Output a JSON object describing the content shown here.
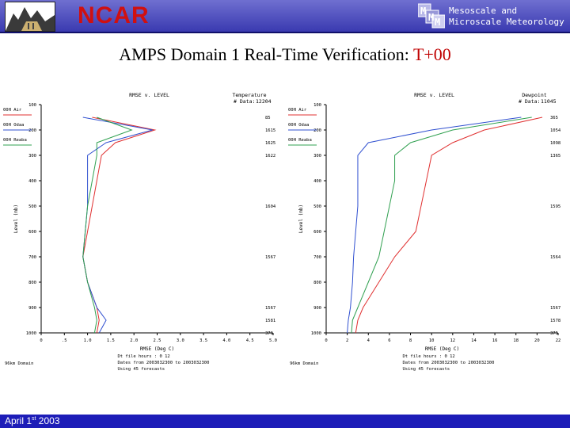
{
  "header": {
    "org": "NCAR",
    "division_line1": "Mesoscale and",
    "division_line2": "Microscale Meteorology",
    "logo_icon": "mountain-logo-icon",
    "mmm_icon": "mmm-logo-icon",
    "banner_color": "#4a4ac0",
    "org_color": "#d01010"
  },
  "slide": {
    "title_main": "AMPS Domain 1 Real-Time Verification:",
    "title_hour": "T+00"
  },
  "footer": {
    "date_prefix": "April 1",
    "date_sup": "st",
    "date_suffix": " 2003"
  },
  "colors": {
    "00H Air": "#e03030",
    "00H Odaa": "#3050d0",
    "00H Reaba": "#30a050"
  },
  "chart_data": [
    {
      "type": "line",
      "title": "RMSE v. LEVEL",
      "variable": "Temperature",
      "data_count_label": "# Data:",
      "data_count": "12204",
      "xlabel": "RMSE (Deg C)",
      "ylabel": "Level (mb)",
      "xlim": [
        0,
        5
      ],
      "ylim": [
        1000,
        100
      ],
      "x_ticks": [
        "0",
        ".5",
        "1.0",
        "1.5",
        "2.0",
        "2.5",
        "3.0",
        "3.5",
        "4.0",
        "4.5",
        "5.0"
      ],
      "y_ticks": [
        "100",
        "200",
        "300",
        "400",
        "500",
        "600",
        "700",
        "800",
        "900",
        "1000"
      ],
      "levels": [
        150,
        200,
        250,
        300,
        400,
        500,
        600,
        700,
        800,
        900,
        950,
        1000
      ],
      "counts": [
        "85",
        "1615",
        "1625",
        "1622",
        "",
        "1604",
        "",
        "1567",
        "",
        "1567",
        "1581",
        "376"
      ],
      "series": [
        {
          "name": "00H Air",
          "values": [
            1.1,
            2.45,
            1.6,
            1.3,
            1.2,
            1.1,
            1.0,
            0.9,
            1.0,
            1.2,
            1.25,
            1.2
          ]
        },
        {
          "name": "00H Odaa",
          "values": [
            0.9,
            2.4,
            1.4,
            1.0,
            1.0,
            1.0,
            0.95,
            0.9,
            1.0,
            1.2,
            1.4,
            1.25
          ]
        },
        {
          "name": "00H Reaba",
          "values": [
            1.2,
            1.95,
            1.2,
            1.2,
            1.1,
            1.0,
            0.95,
            0.9,
            1.0,
            1.15,
            1.2,
            1.15
          ]
        }
      ],
      "footer_lines": [
        "Dt file hours : 0 12",
        "Dates from 2003032300 to 2003032300",
        "Using   45 forecasts"
      ],
      "footer_left": "96km Domain"
    },
    {
      "type": "line",
      "title": "RMSE v. LEVEL",
      "variable": "Dewpoint",
      "data_count_label": "# Data:",
      "data_count": "11045",
      "xlabel": "RMSE (Deg C)",
      "ylabel": "Level (mb)",
      "xlim": [
        0,
        22
      ],
      "ylim": [
        1000,
        100
      ],
      "x_ticks": [
        "0",
        "2",
        "4",
        "6",
        "8",
        "10",
        "12",
        "14",
        "16",
        "18",
        "20",
        "22"
      ],
      "y_ticks": [
        "100",
        "200",
        "300",
        "400",
        "500",
        "600",
        "700",
        "800",
        "900",
        "1000"
      ],
      "levels": [
        150,
        200,
        250,
        300,
        400,
        500,
        600,
        700,
        800,
        900,
        950,
        1000
      ],
      "counts": [
        "365",
        "1054",
        "1098",
        "1365",
        "",
        "1595",
        "",
        "1564",
        "",
        "1567",
        "1578",
        "375"
      ],
      "series": [
        {
          "name": "00H Air",
          "values": [
            20.5,
            15.0,
            12.0,
            10.0,
            9.5,
            9.0,
            8.5,
            6.5,
            5.0,
            3.5,
            3.0,
            2.8
          ]
        },
        {
          "name": "00H Odaa",
          "values": [
            18.5,
            10.0,
            4.0,
            3.0,
            3.0,
            3.0,
            2.8,
            2.6,
            2.5,
            2.3,
            2.1,
            2.0
          ]
        },
        {
          "name": "00H Reaba",
          "values": [
            19.5,
            12.0,
            8.0,
            6.5,
            6.5,
            6.0,
            5.5,
            5.0,
            4.0,
            3.0,
            2.5,
            2.4
          ]
        }
      ],
      "footer_lines": [
        "Dt file hours : 0 12",
        "Dates from 2003032300 to 2003032300",
        "Using   45 forecasts"
      ],
      "footer_left": "96km Domain"
    }
  ]
}
